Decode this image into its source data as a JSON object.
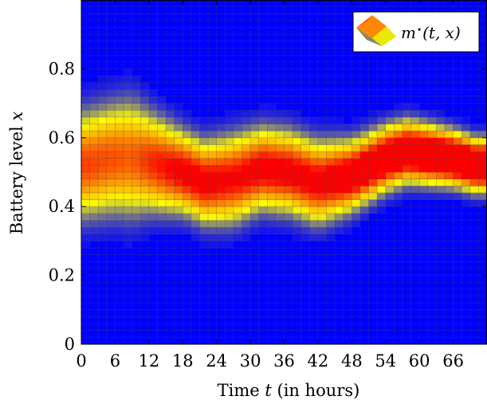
{
  "chart_data": {
    "type": "heatmap",
    "title": "",
    "xlabel": "Time t (in hours)",
    "xlabel_parts": [
      "Time ",
      "t",
      " (in hours)"
    ],
    "ylabel": "Battery level x",
    "ylabel_parts": [
      "Battery level ",
      "x"
    ],
    "xlim": [
      0,
      72
    ],
    "ylim": [
      0,
      1
    ],
    "x_ticks": [
      0,
      6,
      12,
      18,
      24,
      30,
      36,
      42,
      48,
      54,
      60,
      66
    ],
    "y_ticks": [
      0,
      0.2,
      0.4,
      0.6,
      0.8
    ],
    "y_tick_labels": [
      "0",
      "0.2",
      "0.4",
      "0.6",
      "0.8"
    ],
    "grid": true,
    "legend": {
      "placement": "top-right",
      "entries": [
        "m⋆(t, x)"
      ],
      "label_parts": [
        "m",
        "⋆",
        "(t, x)"
      ]
    },
    "colormap": [
      "#0000ff",
      "#ffff00",
      "#ff8000",
      "#ff0000"
    ],
    "background_color": "#0000ff",
    "t_grid_step": 1.5,
    "x_grid_step": 0.02,
    "peak_density": 5.6,
    "density_profile": {
      "t": [
        0,
        6,
        9,
        12,
        18,
        22,
        27,
        32,
        37,
        42,
        48,
        54,
        58,
        62,
        66,
        70,
        72
      ],
      "center": [
        0.52,
        0.54,
        0.54,
        0.53,
        0.5,
        0.47,
        0.48,
        0.51,
        0.5,
        0.47,
        0.49,
        0.54,
        0.56,
        0.55,
        0.54,
        0.52,
        0.52
      ],
      "spread": [
        0.085,
        0.09,
        0.095,
        0.08,
        0.065,
        0.065,
        0.07,
        0.065,
        0.065,
        0.065,
        0.055,
        0.05,
        0.048,
        0.045,
        0.042,
        0.04,
        0.04
      ]
    }
  }
}
